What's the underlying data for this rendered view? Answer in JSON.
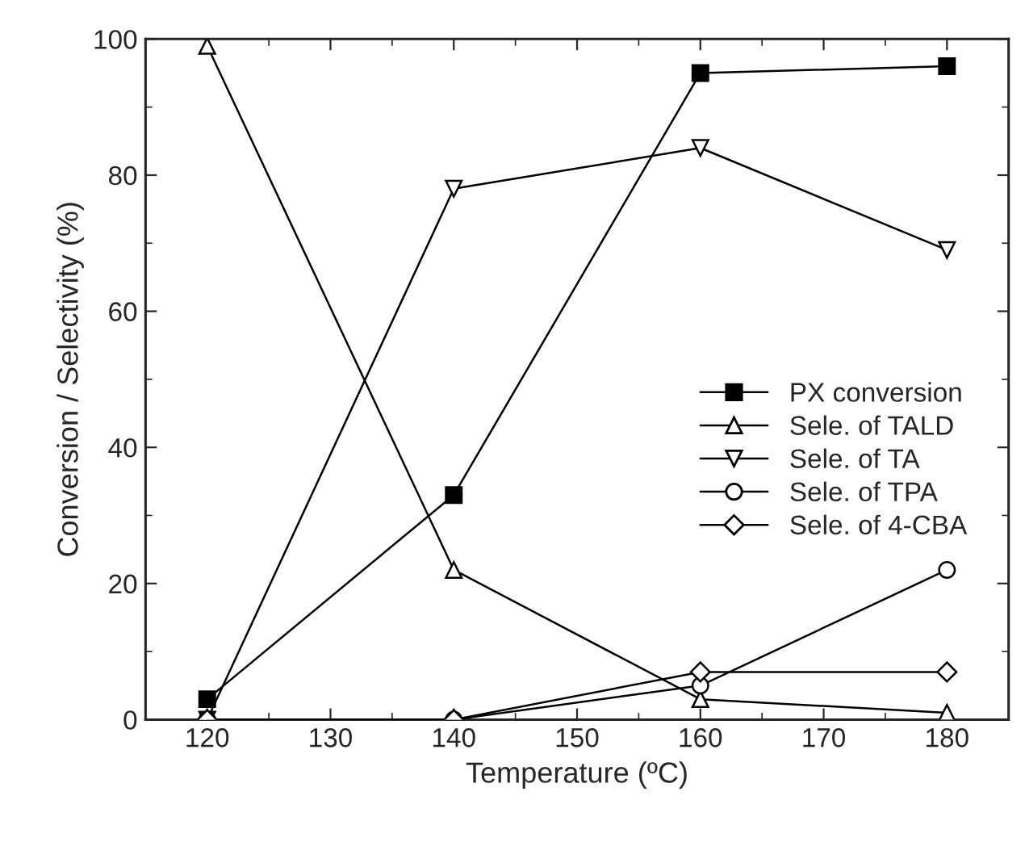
{
  "chart_data": {
    "type": "line",
    "xlabel": "Temperature (ºC)",
    "ylabel": "Conversion / Selectivity (%)",
    "x": [
      120,
      140,
      160,
      180
    ],
    "series": [
      {
        "name": "PX conversion",
        "color": "#000000",
        "marker": "square",
        "values": [
          3,
          33,
          95,
          96
        ]
      },
      {
        "name": "Sele. of TALD",
        "color": "#000000",
        "marker": "triangle",
        "values": [
          99,
          22,
          3,
          1
        ]
      },
      {
        "name": "Sele. of TA",
        "color": "#000000",
        "marker": "triangle-down",
        "values": [
          0,
          78,
          84,
          69
        ]
      },
      {
        "name": "Sele. of TPA",
        "color": "#000000",
        "marker": "circle",
        "values": [
          0,
          0,
          5,
          22
        ]
      },
      {
        "name": "Sele. of 4-CBA",
        "color": "#000000",
        "marker": "diamond",
        "values": [
          0,
          0,
          7,
          7
        ]
      }
    ],
    "xlim": [
      115,
      185
    ],
    "xticks": [
      120,
      130,
      140,
      150,
      160,
      170,
      180
    ],
    "ylim": [
      0,
      100
    ],
    "yticks": [
      0,
      20,
      40,
      60,
      80,
      100
    ],
    "grid": false,
    "legend": "right",
    "line_style": "solid"
  }
}
